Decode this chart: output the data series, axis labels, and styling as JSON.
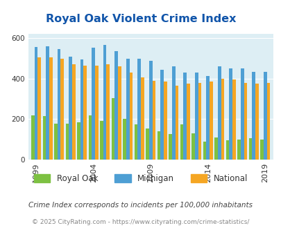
{
  "title": "Royal Oak Violent Crime Index",
  "subtitle": "Crime Index corresponds to incidents per 100,000 inhabitants",
  "footer": "© 2025 CityRating.com - https://www.cityrating.com/crime-statistics/",
  "years": [
    1999,
    2000,
    2001,
    2002,
    2003,
    2004,
    2005,
    2006,
    2007,
    2008,
    2009,
    2010,
    2011,
    2012,
    2013,
    2014,
    2015,
    2016,
    2017,
    2018,
    2019
  ],
  "royal_oak": [
    218,
    215,
    178,
    178,
    185,
    220,
    190,
    305,
    200,
    175,
    155,
    140,
    125,
    175,
    130,
    90,
    110,
    95,
    100,
    105,
    100
  ],
  "michigan": [
    558,
    560,
    545,
    510,
    495,
    555,
    568,
    535,
    500,
    500,
    490,
    445,
    460,
    430,
    430,
    415,
    460,
    450,
    450,
    435,
    435
  ],
  "national": [
    505,
    505,
    500,
    470,
    465,
    465,
    470,
    460,
    430,
    405,
    390,
    385,
    365,
    375,
    380,
    385,
    400,
    395,
    380,
    375,
    380
  ],
  "colors": {
    "royal_oak": "#7dc142",
    "michigan": "#4e9fd4",
    "national": "#f5a623"
  },
  "background_color": "#ddeef4",
  "ylim": [
    0,
    620
  ],
  "yticks": [
    0,
    200,
    400,
    600
  ],
  "xtick_years": [
    1999,
    2004,
    2009,
    2014,
    2019
  ],
  "title_color": "#1155aa",
  "subtitle_color": "#444444",
  "footer_color": "#888888",
  "grid_color": "#ffffff",
  "legend_labels": [
    "Royal Oak",
    "Michigan",
    "National"
  ]
}
